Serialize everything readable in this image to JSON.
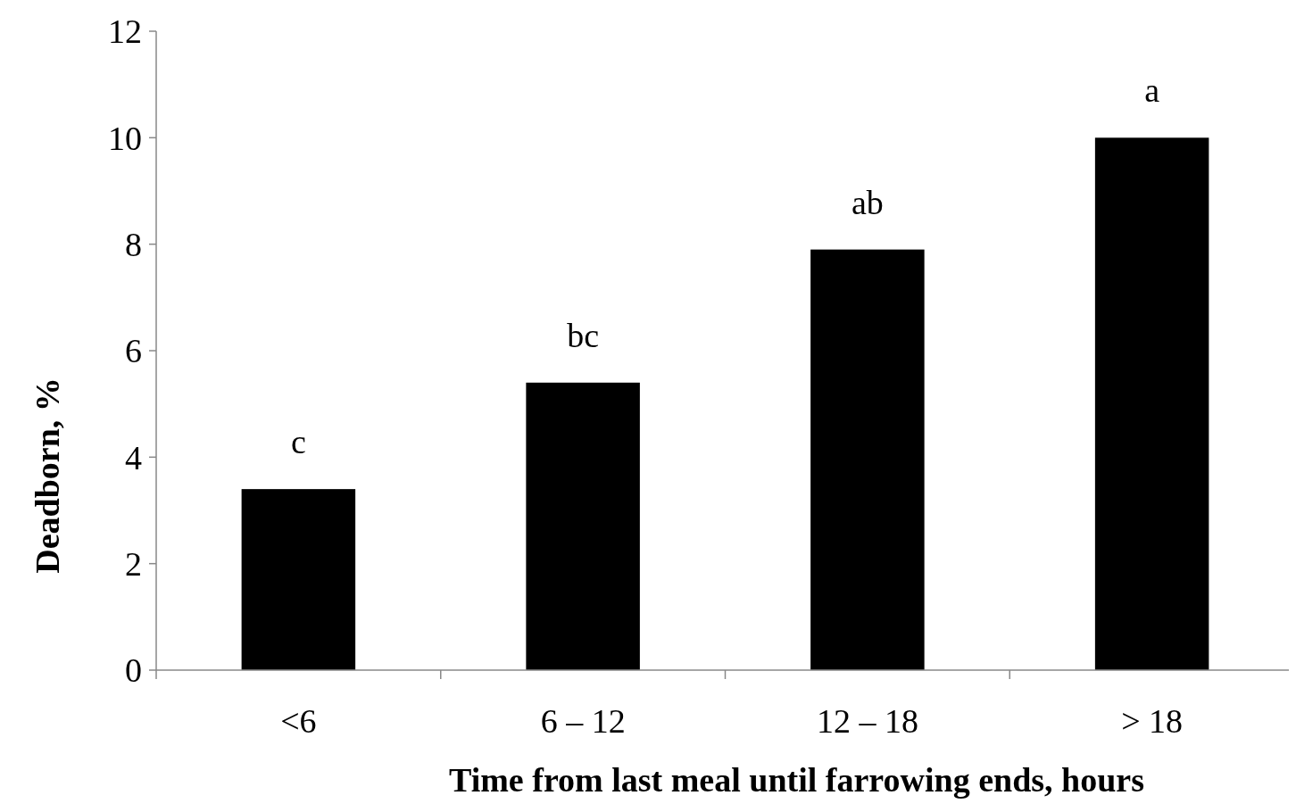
{
  "chart_data": {
    "type": "bar",
    "xlabel": "Time from  last meal until  farrowing  ends, hours",
    "ylabel": "Deadborn, %",
    "categories": [
      "<6",
      "6 – 12",
      "12 – 18",
      "> 18"
    ],
    "values": [
      3.4,
      5.4,
      7.9,
      10.0
    ],
    "color": "#000000",
    "ylim": [
      0,
      12
    ],
    "yticks": [
      0,
      2,
      4,
      6,
      8,
      10,
      12
    ],
    "grid": false,
    "annotations": [
      {
        "text": "c",
        "x": "<6",
        "y": 3.4
      },
      {
        "text": "bc",
        "x": "6 – 12",
        "y": 5.4
      },
      {
        "text": "ab",
        "x": "12 – 18",
        "y": 7.9
      },
      {
        "text": "a",
        "x": "> 18",
        "y": 10.0
      }
    ]
  }
}
